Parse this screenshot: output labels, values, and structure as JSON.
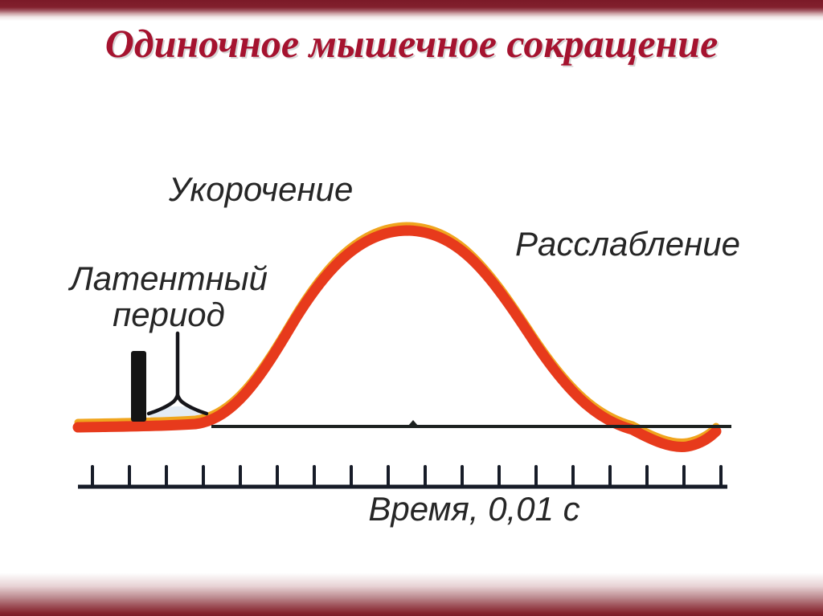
{
  "slide": {
    "title": "Одиночное мышечное сокращение"
  },
  "theme": {
    "border_red_dark": "#7b1a28",
    "title_red": "#a5132f",
    "curve_red": "#e73a1c",
    "curve_gold": "#f0a51e",
    "ink": "#1c2120",
    "ruler_ink": "#171c28",
    "label_color": "#262626",
    "background": "#ffffff"
  },
  "diagram": {
    "type": "line-curve",
    "labels": {
      "shortening": "Укорочение",
      "latent_line1": "Латентный",
      "latent_line2": "период",
      "relaxation": "Расслабление",
      "time_axis": "Время, 0,01 с"
    },
    "curve_phases": [
      "Латентный период",
      "Укорочение",
      "Расслабление"
    ],
    "time_scale": {
      "tick_count": 18,
      "tick_start_x": 115,
      "tick_spacing": 46
    }
  }
}
